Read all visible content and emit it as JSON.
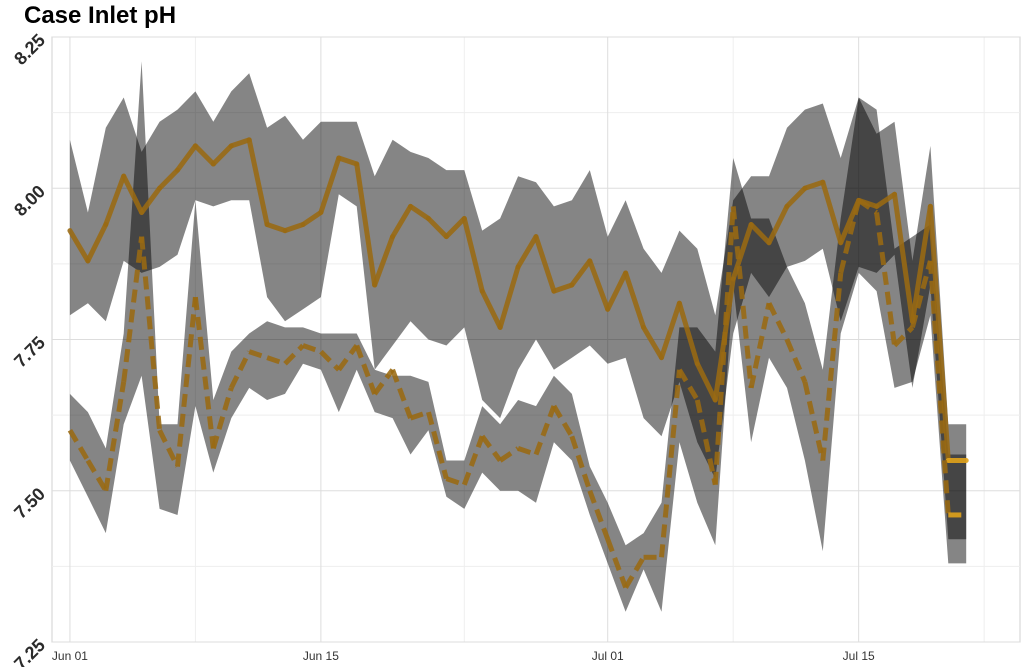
{
  "chart_data": {
    "type": "line",
    "title": "Case Inlet pH",
    "xlabel": "",
    "ylabel": "",
    "xlim": [
      "2019-05-31",
      "2019-07-24"
    ],
    "ylim": [
      7.25,
      8.25
    ],
    "y_ticks": [
      7.25,
      7.5,
      7.75,
      8.0,
      8.25
    ],
    "y_tick_labels": [
      "7.25",
      "7.50",
      "7.75",
      "8.00",
      "8.25"
    ],
    "x_ticks": [
      "2019-06-01",
      "2019-06-15",
      "2019-07-01",
      "2019-07-15"
    ],
    "x_tick_labels": [
      "Jun 01",
      "Jun 15",
      "Jul 01",
      "Jul 15"
    ],
    "grid": true,
    "line_color": "#9a6a12",
    "last_color": "#e0a21a",
    "band_color": "#000000",
    "series": [
      {
        "style": "solid",
        "x": [
          "2019-06-01",
          "2019-06-02",
          "2019-06-03",
          "2019-06-04",
          "2019-06-05",
          "2019-06-06",
          "2019-06-07",
          "2019-06-08",
          "2019-06-09",
          "2019-06-10",
          "2019-06-11",
          "2019-06-12",
          "2019-06-13",
          "2019-06-14",
          "2019-06-15",
          "2019-06-16",
          "2019-06-17",
          "2019-06-18",
          "2019-06-19",
          "2019-06-20",
          "2019-06-21",
          "2019-06-22",
          "2019-06-23",
          "2019-06-24",
          "2019-06-25",
          "2019-06-26",
          "2019-06-27",
          "2019-06-28",
          "2019-06-29",
          "2019-06-30",
          "2019-07-01",
          "2019-07-02",
          "2019-07-03",
          "2019-07-04",
          "2019-07-05",
          "2019-07-06",
          "2019-07-07",
          "2019-07-08",
          "2019-07-09",
          "2019-07-10",
          "2019-07-11",
          "2019-07-12",
          "2019-07-13",
          "2019-07-14",
          "2019-07-15",
          "2019-07-16",
          "2019-07-17",
          "2019-07-18",
          "2019-07-19",
          "2019-07-20",
          "2019-07-21"
        ],
        "y": [
          7.93,
          7.88,
          7.94,
          8.02,
          7.96,
          8.0,
          8.03,
          8.07,
          8.04,
          8.07,
          8.08,
          7.94,
          7.93,
          7.94,
          7.96,
          8.05,
          8.04,
          7.84,
          7.92,
          7.97,
          7.95,
          7.92,
          7.95,
          7.83,
          7.77,
          7.87,
          7.92,
          7.83,
          7.84,
          7.88,
          7.8,
          7.86,
          7.77,
          7.72,
          7.81,
          7.71,
          7.65,
          7.85,
          7.94,
          7.91,
          7.97,
          8.0,
          8.01,
          7.91,
          7.98,
          7.97,
          7.99,
          7.78,
          7.97,
          7.55,
          7.55
        ],
        "lower": [
          7.79,
          7.81,
          7.78,
          7.88,
          7.86,
          7.87,
          7.89,
          7.98,
          7.97,
          7.98,
          7.98,
          7.82,
          7.78,
          7.8,
          7.82,
          7.99,
          7.97,
          7.7,
          7.74,
          7.78,
          7.75,
          7.74,
          7.77,
          7.65,
          7.62,
          7.7,
          7.75,
          7.7,
          7.72,
          7.74,
          7.71,
          7.72,
          7.62,
          7.59,
          7.68,
          7.58,
          7.52,
          7.76,
          7.86,
          7.82,
          7.87,
          7.88,
          7.9,
          7.78,
          7.87,
          7.86,
          7.89,
          7.67,
          7.84,
          7.42,
          7.42
        ],
        "upper": [
          8.08,
          7.96,
          8.1,
          8.15,
          8.06,
          8.11,
          8.13,
          8.16,
          8.11,
          8.16,
          8.19,
          8.1,
          8.12,
          8.08,
          8.11,
          8.11,
          8.11,
          8.02,
          8.08,
          8.06,
          8.05,
          8.03,
          8.03,
          7.93,
          7.95,
          8.02,
          8.01,
          7.97,
          7.98,
          8.03,
          7.92,
          7.98,
          7.9,
          7.86,
          7.93,
          7.9,
          7.79,
          7.98,
          8.02,
          8.02,
          8.1,
          8.13,
          8.14,
          8.05,
          8.15,
          8.09,
          8.11,
          7.88,
          8.07,
          7.61,
          7.61
        ]
      },
      {
        "style": "dashed",
        "x": [
          "2019-06-01",
          "2019-06-02",
          "2019-06-03",
          "2019-06-04",
          "2019-06-05",
          "2019-06-06",
          "2019-06-07",
          "2019-06-08",
          "2019-06-09",
          "2019-06-10",
          "2019-06-11",
          "2019-06-12",
          "2019-06-13",
          "2019-06-14",
          "2019-06-15",
          "2019-06-16",
          "2019-06-17",
          "2019-06-18",
          "2019-06-19",
          "2019-06-20",
          "2019-06-21",
          "2019-06-22",
          "2019-06-23",
          "2019-06-24",
          "2019-06-25",
          "2019-06-26",
          "2019-06-27",
          "2019-06-28",
          "2019-06-29",
          "2019-06-30",
          "2019-07-01",
          "2019-07-02",
          "2019-07-03",
          "2019-07-04",
          "2019-07-05",
          "2019-07-06",
          "2019-07-07",
          "2019-07-08",
          "2019-07-09",
          "2019-07-10",
          "2019-07-11",
          "2019-07-12",
          "2019-07-13",
          "2019-07-14",
          "2019-07-15",
          "2019-07-16",
          "2019-07-17",
          "2019-07-18",
          "2019-07-19",
          "2019-07-20",
          "2019-07-21"
        ],
        "y": [
          7.6,
          7.55,
          7.5,
          7.68,
          7.92,
          7.6,
          7.54,
          7.82,
          7.57,
          7.67,
          7.73,
          7.72,
          7.71,
          7.74,
          7.73,
          7.7,
          7.74,
          7.66,
          7.7,
          7.62,
          7.63,
          7.52,
          7.51,
          7.59,
          7.55,
          7.57,
          7.56,
          7.64,
          7.59,
          7.5,
          7.42,
          7.34,
          7.39,
          7.39,
          7.7,
          7.65,
          7.51,
          7.97,
          7.67,
          7.81,
          7.75,
          7.68,
          7.55,
          7.86,
          7.98,
          7.96,
          7.74,
          7.77,
          7.88,
          7.46,
          7.46
        ],
        "lower": [
          7.55,
          7.49,
          7.43,
          7.61,
          7.69,
          7.47,
          7.46,
          7.64,
          7.53,
          7.62,
          7.67,
          7.65,
          7.66,
          7.71,
          7.7,
          7.63,
          7.7,
          7.63,
          7.62,
          7.56,
          7.6,
          7.49,
          7.47,
          7.53,
          7.5,
          7.5,
          7.48,
          7.58,
          7.55,
          7.46,
          7.38,
          7.3,
          7.37,
          7.3,
          7.58,
          7.48,
          7.41,
          7.84,
          7.58,
          7.72,
          7.67,
          7.55,
          7.4,
          7.76,
          7.86,
          7.83,
          7.67,
          7.68,
          7.79,
          7.38,
          7.38
        ],
        "upper": [
          7.66,
          7.63,
          7.57,
          7.76,
          8.21,
          7.61,
          7.61,
          7.98,
          7.65,
          7.73,
          7.76,
          7.78,
          7.77,
          7.77,
          7.76,
          7.76,
          7.76,
          7.7,
          7.69,
          7.69,
          7.68,
          7.55,
          7.55,
          7.64,
          7.61,
          7.65,
          7.64,
          7.69,
          7.66,
          7.54,
          7.48,
          7.41,
          7.43,
          7.48,
          7.77,
          7.77,
          7.73,
          8.05,
          7.95,
          7.95,
          7.87,
          7.81,
          7.7,
          7.95,
          8.15,
          8.13,
          7.9,
          7.92,
          7.94,
          7.56,
          7.56
        ]
      }
    ]
  }
}
